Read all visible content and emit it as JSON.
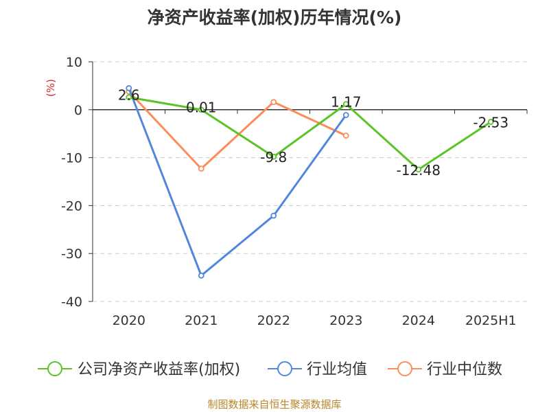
{
  "chart_data": {
    "type": "line",
    "title": "净资产收益率(加权)历年情况(%)",
    "ylabel": "(%)",
    "categories": [
      "2020",
      "2021",
      "2022",
      "2023",
      "2024",
      "2025H1"
    ],
    "ylim": [
      -40,
      10
    ],
    "yticks": [
      10,
      0,
      -10,
      -20,
      -30,
      -40
    ],
    "grid": true,
    "legend_position": "bottom",
    "series": [
      {
        "name": "公司净资产收益率(加权)",
        "color": "#5bc326",
        "values": [
          2.6,
          0.01,
          -9.8,
          1.17,
          -12.48,
          -2.53
        ],
        "labels": [
          "2.6",
          "0.01",
          "-9.8",
          "1.17",
          "-12.48",
          "-2.53"
        ]
      },
      {
        "name": "行业均值",
        "color": "#5087dc",
        "values": [
          4.5,
          -34.6,
          -22.1,
          -1.1,
          null,
          null
        ]
      },
      {
        "name": "行业中位数",
        "color": "#fc8d5b",
        "values": [
          3.8,
          -12.3,
          1.6,
          -5.4,
          null,
          null
        ]
      }
    ]
  },
  "footer": {
    "source": "制图数据来自恒生聚源数据库"
  }
}
